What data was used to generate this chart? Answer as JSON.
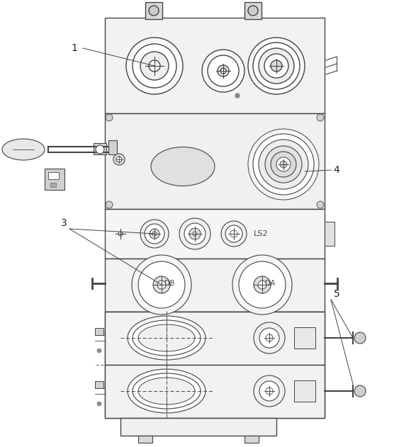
{
  "background_color": "#ffffff",
  "line_color": "#444444",
  "ls2_text": "LS2",
  "db_text": "DB",
  "da_text": "DA",
  "label_1": "1",
  "label_3": "3",
  "label_4": "4",
  "label_5": "5"
}
